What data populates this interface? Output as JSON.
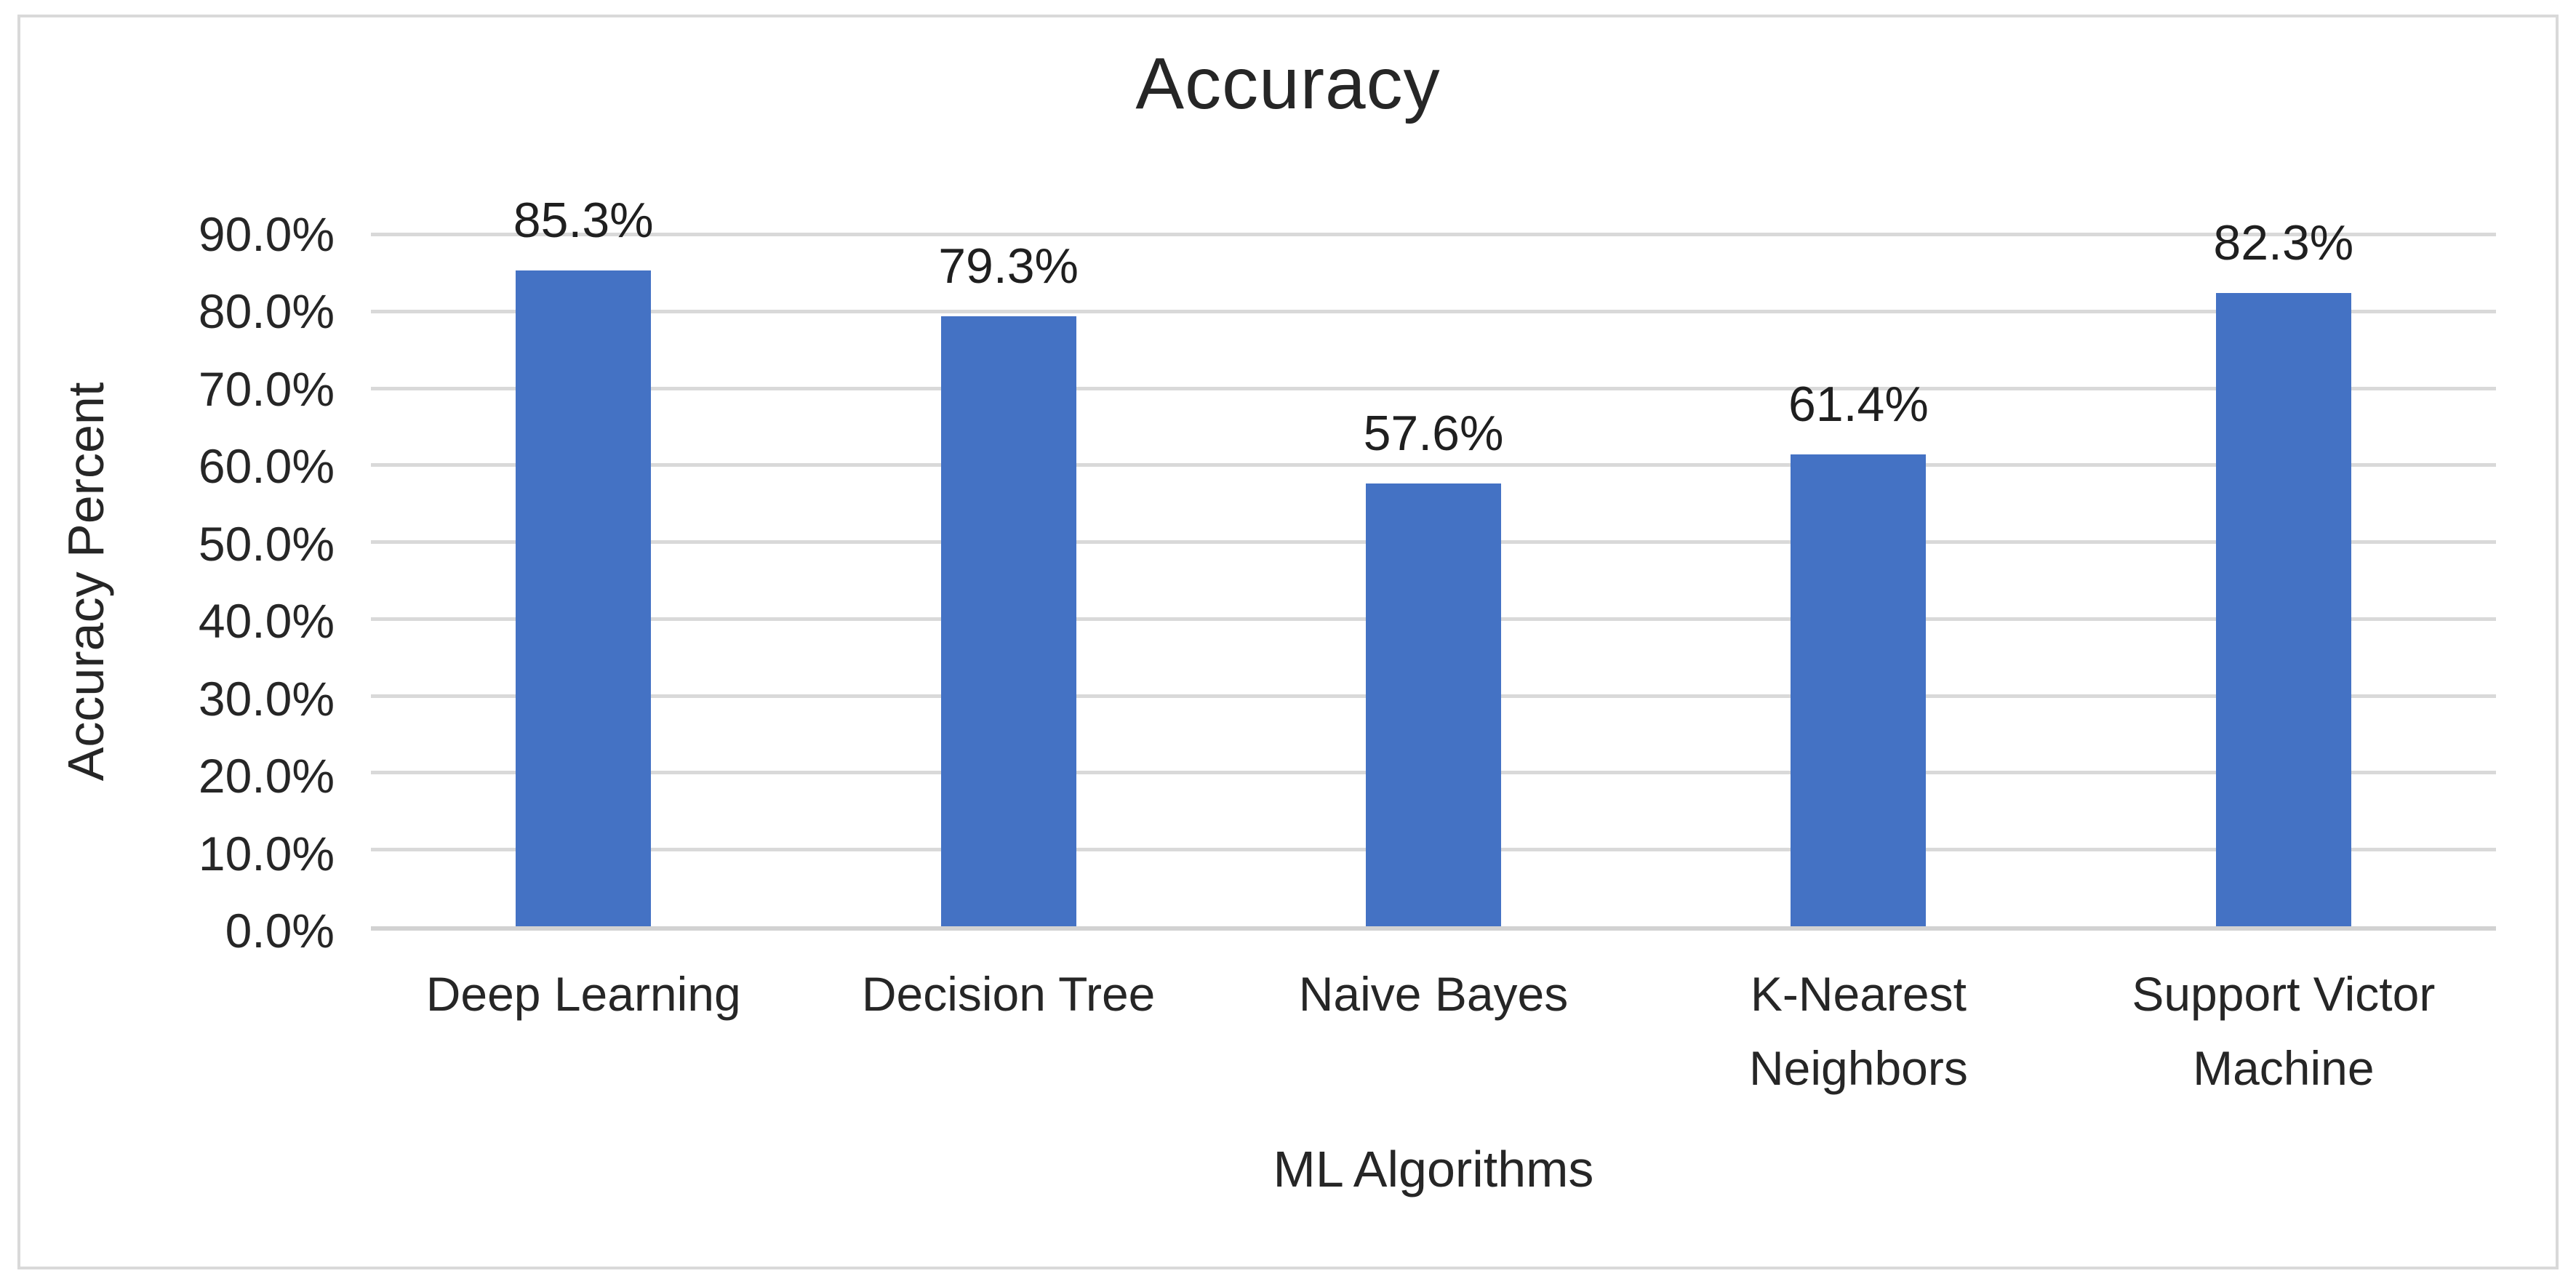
{
  "chart_data": {
    "type": "bar",
    "title": "Accuracy",
    "xlabel": "ML Algorithms",
    "ylabel": "Accuracy Percent",
    "categories": [
      "Deep Learning",
      "Decision Tree",
      "Naive Bayes",
      "K-Nearest Neighbors",
      "Support Victor Machine"
    ],
    "values": [
      85.3,
      79.3,
      57.6,
      61.4,
      82.3
    ],
    "value_labels": [
      "85.3%",
      "79.3%",
      "57.6%",
      "61.4%",
      "82.3%"
    ],
    "y_ticks": [
      "90.0%",
      "80.0%",
      "70.0%",
      "60.0%",
      "50.0%",
      "40.0%",
      "30.0%",
      "20.0%",
      "10.0%",
      "0.0%"
    ],
    "ylim": [
      0,
      90
    ],
    "grid": true,
    "legend_position": "none",
    "bar_color": "#4472C4",
    "gridline_color": "#D9D9D9",
    "frame_color": "#D9D9D9"
  }
}
